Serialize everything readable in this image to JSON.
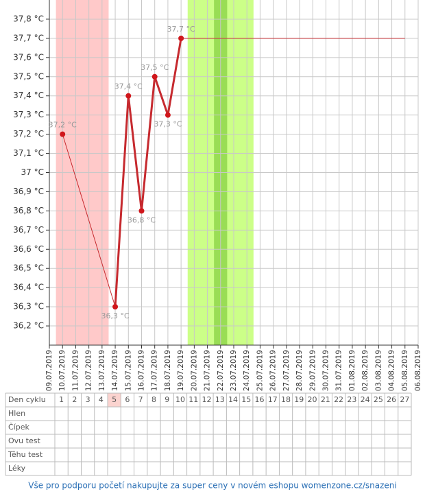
{
  "chart_data": {
    "type": "line",
    "categories": [
      "09.07.2019",
      "10.07.2019",
      "11.07.2019",
      "12.07.2019",
      "13.07.2019",
      "14.07.2019",
      "15.07.2019",
      "16.07.2019",
      "17.07.2019",
      "18.07.2019",
      "19.07.2019",
      "20.07.2019",
      "21.07.2019",
      "22.07.2019",
      "23.07.2019",
      "24.07.2019",
      "25.07.2019",
      "26.07.2019",
      "27.07.2019",
      "28.07.2019",
      "29.07.2019",
      "30.07.2019",
      "31.07.2019",
      "01.08.2019",
      "02.08.2019",
      "03.08.2019",
      "04.08.2019",
      "05.08.2019",
      "06.08.2019"
    ],
    "series": [
      {
        "color": "#c62a2f",
        "width": 3,
        "markers": true,
        "connect_gaps": true,
        "values": [
          null,
          37.2,
          null,
          null,
          null,
          36.3,
          37.4,
          36.8,
          37.5,
          37.3,
          37.7,
          null,
          null,
          null,
          null,
          null,
          null,
          null,
          null,
          null,
          null,
          null,
          null,
          null,
          null,
          null,
          null,
          null,
          null
        ],
        "value_labels": [
          null,
          "37,2 °C",
          null,
          null,
          null,
          "36,3 °C",
          "37,4 °C",
          "36,8 °C",
          "37,5 °C",
          "37,3 °C",
          "37,7 °C",
          null,
          null,
          null,
          null,
          null,
          null,
          null,
          null,
          null,
          null,
          null,
          null,
          null,
          null,
          null,
          null,
          null,
          null
        ]
      },
      {
        "color": "#c62a2f",
        "width": 1,
        "markers": false,
        "connect_gaps": false,
        "values": [
          null,
          null,
          null,
          null,
          null,
          null,
          null,
          null,
          null,
          null,
          37.7,
          37.7,
          37.7,
          37.7,
          37.7,
          37.7,
          37.7,
          37.7,
          37.7,
          37.7,
          37.7,
          37.7,
          37.7,
          37.7,
          37.7,
          37.7,
          37.7,
          37.7,
          null
        ]
      }
    ],
    "bands": [
      {
        "from": "10.07.2019",
        "to": "13.07.2019",
        "color": "#ffc9c9"
      },
      {
        "from": "20.07.2019",
        "to": "24.07.2019",
        "color": "#ccff88"
      },
      {
        "from": "22.07.2019",
        "to": "22.07.2019",
        "color": "#99dd55"
      }
    ],
    "ylim": [
      36.1,
      37.9
    ],
    "yticks": [
      {
        "value": 36.2,
        "label": "36,2 °C"
      },
      {
        "value": 36.3,
        "label": "36,3 °C"
      },
      {
        "value": 36.4,
        "label": "36,4 °C"
      },
      {
        "value": 36.5,
        "label": "36,5 °C"
      },
      {
        "value": 36.6,
        "label": "36,6 °C"
      },
      {
        "value": 36.7,
        "label": "36,7 °C"
      },
      {
        "value": 36.8,
        "label": "36,8 °C"
      },
      {
        "value": 36.9,
        "label": "36,9 °C"
      },
      {
        "value": 37,
        "label": "37 °C"
      },
      {
        "value": 37.1,
        "label": "37,1 °C"
      },
      {
        "value": 37.2,
        "label": "37,2 °C"
      },
      {
        "value": 37.3,
        "label": "37,3 °C"
      },
      {
        "value": 37.4,
        "label": "37,4 °C"
      },
      {
        "value": 37.5,
        "label": "37,5 °C"
      },
      {
        "value": 37.6,
        "label": "37,6 °C"
      },
      {
        "value": 37.7,
        "label": "37,7 °C"
      },
      {
        "value": 37.8,
        "label": "37,8 °C"
      }
    ],
    "grid": true
  },
  "table": {
    "header": "Den cyklu",
    "days": [
      "1",
      "2",
      "3",
      "4",
      "5",
      "6",
      "7",
      "8",
      "9",
      "10",
      "11",
      "12",
      "13",
      "14",
      "15",
      "16",
      "17",
      "18",
      "19",
      "20",
      "21",
      "22",
      "23",
      "24",
      "25",
      "26",
      "27"
    ],
    "highlighted": "5",
    "rows": [
      "Hlen",
      "Čípek",
      "Ovu test",
      "Těhu test",
      "Léky"
    ]
  },
  "footer": "Vše pro podporu početí nakupujte za super ceny v novém eshopu womenzone.cz/snazeni"
}
